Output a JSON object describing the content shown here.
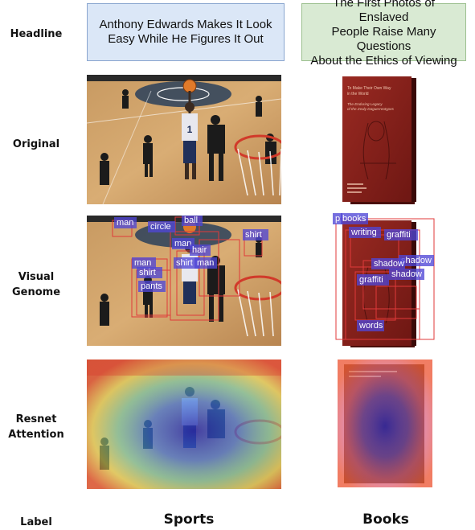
{
  "rows": {
    "headline": "Headline",
    "original": "Original",
    "visual_genome_1": "Visual",
    "visual_genome_2": "Genome",
    "resnet_1": "Resnet",
    "resnet_2": "Attention",
    "label": "Label"
  },
  "headlines": {
    "sports_1": "Anthony Edwards Makes It Look",
    "sports_2": "Easy While He Figures It Out",
    "books_1": "The First Photos of Enslaved",
    "books_2": "People Raise Many Questions",
    "books_3": "About the Ethics of Viewing"
  },
  "labels": {
    "sports": "Sports",
    "books": "Books"
  },
  "jersey_number": "1",
  "book_cover": {
    "title_1": "To Make Their Own Way",
    "title_2": "in the World",
    "subtitle_1": "The Enduring Legacy",
    "subtitle_2": "of the Zealy Daguerreotypes"
  },
  "vg_sports_tags": {
    "t1": "man",
    "t2": "ball",
    "t3": "circle",
    "t4": "man",
    "t5": "hair",
    "t6": "shirt",
    "t7": "man",
    "t8": "shirt",
    "t9": "man",
    "t10": "shirt",
    "t11": "pants"
  },
  "vg_books_tags": {
    "t1": "p",
    "t2": "books",
    "t3": "writing",
    "t4": "graffiti",
    "t5": "shadow",
    "t6": "shadow",
    "t7": "graffiti",
    "t8": "shadow",
    "t9": "words"
  },
  "colors": {
    "headline_blue": "#dbe7f7",
    "headline_green": "#d9ead3",
    "tag_fill": "#5046d6",
    "box_stroke": "#e03a3a",
    "book_red": "#8b1e1e"
  }
}
